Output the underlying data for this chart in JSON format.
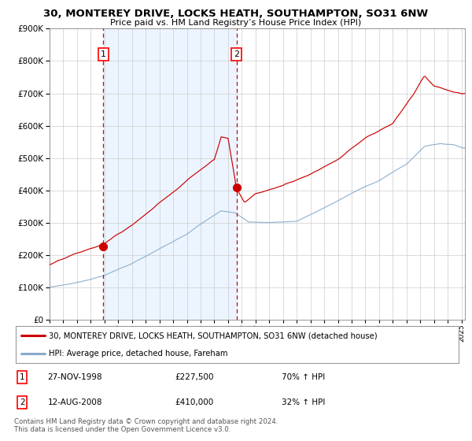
{
  "title_line1": "30, MONTEREY DRIVE, LOCKS HEATH, SOUTHAMPTON, SO31 6NW",
  "title_line2": "Price paid vs. HM Land Registry’s House Price Index (HPI)",
  "legend_line1": "30, MONTEREY DRIVE, LOCKS HEATH, SOUTHAMPTON, SO31 6NW (detached house)",
  "legend_line2": "HPI: Average price, detached house, Fareham",
  "transaction1_date": "27-NOV-1998",
  "transaction1_price": "£227,500",
  "transaction1_hpi": "70% ↑ HPI",
  "transaction2_date": "12-AUG-2008",
  "transaction2_price": "£410,000",
  "transaction2_hpi": "32% ↑ HPI",
  "footnote": "Contains HM Land Registry data © Crown copyright and database right 2024.\nThis data is licensed under the Open Government Licence v3.0.",
  "hpi_color": "#88aacc",
  "property_color": "#cc0000",
  "shading_color": "#ddeeff",
  "grid_color": "#cccccc",
  "background_color": "#ffffff",
  "marker_color": "#cc0000",
  "dashed_color": "#cc0000",
  "t1_x": 1998.917,
  "t2_x": 2008.62,
  "t1_price": 227500,
  "t2_price": 410000,
  "ylim_max": 900000,
  "ylim_min": 0,
  "xlim_min": 1995.0,
  "xlim_max": 2025.25
}
